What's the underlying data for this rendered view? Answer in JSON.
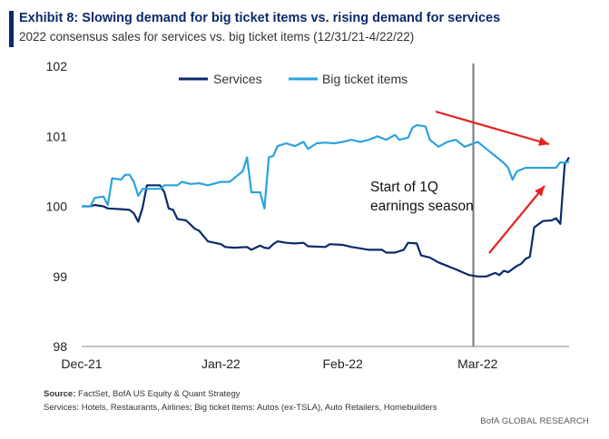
{
  "header": {
    "title": "Exhibit 8: Slowing demand for big ticket items vs. rising demand for services",
    "subtitle": "2022 consensus sales for services vs. big ticket items (12/31/21-4/22/22)"
  },
  "footer": {
    "source_label": "Source:",
    "source_text": " FactSet, BofA US Equity & Quant Strategy",
    "definitions": "Services: Hotels, Restaurants, Airlines; Big ticket items: Autos (ex-TSLA), Auto Retailers, Homebuilders",
    "brand": "BofA GLOBAL RESEARCH"
  },
  "colors": {
    "services": "#0a2a6b",
    "big_ticket": "#2aa3dd",
    "arrow": "#e52221",
    "vline": "#777777"
  },
  "chart_data": {
    "type": "line",
    "title": "Exhibit 8: Slowing demand for big ticket items vs. rising demand for services",
    "subtitle": "2022 consensus sales for services vs. big ticket items (12/31/21-4/22/22)",
    "ylim": [
      98,
      102
    ],
    "yticks": [
      "98",
      "99",
      "100",
      "101",
      "102"
    ],
    "xrange": [
      "2021-12-31",
      "2022-04-22"
    ],
    "xticks": [
      {
        "label": "Dec-21",
        "date": "2021-12-31"
      },
      {
        "label": "Jan-22",
        "date": "2022-02-01"
      },
      {
        "label": "Feb-22",
        "date": "2022-03-01"
      },
      {
        "label": "Mar-22",
        "date": "2022-04-01"
      }
    ],
    "legend": {
      "position": "top-center"
    },
    "grid": false,
    "vline": {
      "date": "2022-03-31"
    },
    "annotations": [
      {
        "text_lines": [
          "Start of 1Q",
          "earnings season"
        ]
      }
    ],
    "series": [
      {
        "name": "Services",
        "key": "services",
        "points": [
          [
            "2021-12-31",
            100.0
          ],
          [
            "2022-01-02",
            100.0
          ],
          [
            "2022-01-03",
            100.02
          ],
          [
            "2022-01-05",
            100.0
          ],
          [
            "2022-01-06",
            99.97
          ],
          [
            "2022-01-09",
            99.96
          ],
          [
            "2022-01-11",
            99.95
          ],
          [
            "2022-01-12",
            99.9
          ],
          [
            "2022-01-13",
            99.78
          ],
          [
            "2022-01-14",
            99.98
          ],
          [
            "2022-01-15",
            100.3
          ],
          [
            "2022-01-18",
            100.3
          ],
          [
            "2022-01-19",
            100.2
          ],
          [
            "2022-01-20",
            99.97
          ],
          [
            "2022-01-21",
            99.95
          ],
          [
            "2022-01-22",
            99.82
          ],
          [
            "2022-01-24",
            99.8
          ],
          [
            "2022-01-26",
            99.68
          ],
          [
            "2022-01-27",
            99.65
          ],
          [
            "2022-01-29",
            99.5
          ],
          [
            "2022-02-01",
            99.46
          ],
          [
            "2022-02-02",
            99.42
          ],
          [
            "2022-02-04",
            99.41
          ],
          [
            "2022-02-07",
            99.42
          ],
          [
            "2022-02-08",
            99.38
          ],
          [
            "2022-02-10",
            99.44
          ],
          [
            "2022-02-11",
            99.41
          ],
          [
            "2022-02-12",
            99.4
          ],
          [
            "2022-02-13",
            99.46
          ],
          [
            "2022-02-14",
            99.5
          ],
          [
            "2022-02-16",
            99.48
          ],
          [
            "2022-02-18",
            99.47
          ],
          [
            "2022-02-20",
            99.48
          ],
          [
            "2022-02-21",
            99.43
          ],
          [
            "2022-02-25",
            99.42
          ],
          [
            "2022-02-26",
            99.46
          ],
          [
            "2022-03-01",
            99.45
          ],
          [
            "2022-03-03",
            99.42
          ],
          [
            "2022-03-05",
            99.4
          ],
          [
            "2022-03-07",
            99.38
          ],
          [
            "2022-03-10",
            99.38
          ],
          [
            "2022-03-11",
            99.34
          ],
          [
            "2022-03-13",
            99.34
          ],
          [
            "2022-03-15",
            99.38
          ],
          [
            "2022-03-16",
            99.48
          ],
          [
            "2022-03-18",
            99.47
          ],
          [
            "2022-03-19",
            99.3
          ],
          [
            "2022-03-21",
            99.27
          ],
          [
            "2022-03-23",
            99.2
          ],
          [
            "2022-03-25",
            99.15
          ],
          [
            "2022-03-27",
            99.1
          ],
          [
            "2022-03-30",
            99.02
          ],
          [
            "2022-04-01",
            99.0
          ],
          [
            "2022-04-03",
            99.0
          ],
          [
            "2022-04-05",
            99.05
          ],
          [
            "2022-04-06",
            99.02
          ],
          [
            "2022-04-07",
            99.08
          ],
          [
            "2022-04-08",
            99.06
          ],
          [
            "2022-04-10",
            99.15
          ],
          [
            "2022-04-11",
            99.18
          ],
          [
            "2022-04-12",
            99.25
          ],
          [
            "2022-04-13",
            99.28
          ],
          [
            "2022-04-14",
            99.7
          ],
          [
            "2022-04-16",
            99.79
          ],
          [
            "2022-04-18",
            99.8
          ],
          [
            "2022-04-19",
            99.83
          ],
          [
            "2022-04-20",
            99.75
          ],
          [
            "2022-04-21",
            100.6
          ],
          [
            "2022-04-22",
            100.7
          ]
        ]
      },
      {
        "name": "Big ticket items",
        "key": "big_ticket",
        "points": [
          [
            "2021-12-31",
            100.0
          ],
          [
            "2022-01-02",
            100.0
          ],
          [
            "2022-01-03",
            100.12
          ],
          [
            "2022-01-05",
            100.14
          ],
          [
            "2022-01-06",
            100.02
          ],
          [
            "2022-01-07",
            100.4
          ],
          [
            "2022-01-09",
            100.38
          ],
          [
            "2022-01-10",
            100.45
          ],
          [
            "2022-01-11",
            100.45
          ],
          [
            "2022-01-12",
            100.35
          ],
          [
            "2022-01-13",
            100.15
          ],
          [
            "2022-01-14",
            100.25
          ],
          [
            "2022-01-18",
            100.25
          ],
          [
            "2022-01-19",
            100.3
          ],
          [
            "2022-01-22",
            100.3
          ],
          [
            "2022-01-23",
            100.35
          ],
          [
            "2022-01-25",
            100.32
          ],
          [
            "2022-01-27",
            100.33
          ],
          [
            "2022-01-29",
            100.3
          ],
          [
            "2022-02-01",
            100.35
          ],
          [
            "2022-02-03",
            100.35
          ],
          [
            "2022-02-04",
            100.4
          ],
          [
            "2022-02-06",
            100.5
          ],
          [
            "2022-02-07",
            100.7
          ],
          [
            "2022-02-08",
            100.2
          ],
          [
            "2022-02-10",
            100.2
          ],
          [
            "2022-02-11",
            99.97
          ],
          [
            "2022-02-12",
            100.7
          ],
          [
            "2022-02-13",
            100.72
          ],
          [
            "2022-02-14",
            100.86
          ],
          [
            "2022-02-16",
            100.9
          ],
          [
            "2022-02-18",
            100.86
          ],
          [
            "2022-02-20",
            100.92
          ],
          [
            "2022-02-21",
            100.82
          ],
          [
            "2022-02-23",
            100.9
          ],
          [
            "2022-02-25",
            100.91
          ],
          [
            "2022-02-27",
            100.9
          ],
          [
            "2022-03-01",
            100.92
          ],
          [
            "2022-03-03",
            100.95
          ],
          [
            "2022-03-05",
            100.92
          ],
          [
            "2022-03-07",
            100.95
          ],
          [
            "2022-03-09",
            101.0
          ],
          [
            "2022-03-11",
            100.95
          ],
          [
            "2022-03-13",
            101.02
          ],
          [
            "2022-03-14",
            100.95
          ],
          [
            "2022-03-16",
            100.98
          ],
          [
            "2022-03-17",
            101.12
          ],
          [
            "2022-03-18",
            101.16
          ],
          [
            "2022-03-20",
            101.14
          ],
          [
            "2022-03-21",
            100.95
          ],
          [
            "2022-03-23",
            100.85
          ],
          [
            "2022-03-25",
            100.92
          ],
          [
            "2022-03-27",
            100.95
          ],
          [
            "2022-03-29",
            100.85
          ],
          [
            "2022-04-01",
            100.92
          ],
          [
            "2022-04-03",
            100.82
          ],
          [
            "2022-04-05",
            100.72
          ],
          [
            "2022-04-07",
            100.62
          ],
          [
            "2022-04-08",
            100.55
          ],
          [
            "2022-04-09",
            100.38
          ],
          [
            "2022-04-10",
            100.5
          ],
          [
            "2022-04-12",
            100.55
          ],
          [
            "2022-04-15",
            100.55
          ],
          [
            "2022-04-18",
            100.55
          ],
          [
            "2022-04-19",
            100.55
          ],
          [
            "2022-04-20",
            100.63
          ],
          [
            "2022-04-21",
            100.62
          ],
          [
            "2022-04-22",
            100.64
          ]
        ]
      }
    ]
  }
}
